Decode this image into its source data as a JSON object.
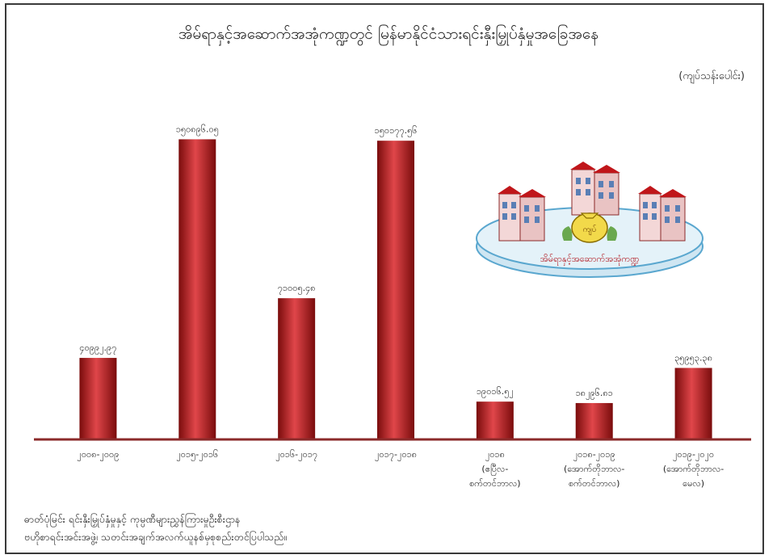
{
  "chart_data": {
    "type": "bar",
    "title": "အိမ်ရာနှင့်အဆောက်အအုံကဏ္ဍတွင် မြန်မာနိုင်ငံသားရင်းနှီးမြှုပ်နှံမှုအခြေအနေ",
    "unit": "(ကျပ်သန်းပေါင်း)",
    "ylim": [
      0,
      160000
    ],
    "categories": [
      [
        "၂၀၀၈-၂၀၀၉"
      ],
      [
        "၂၀၁၅-၂၀၁၆"
      ],
      [
        "၂၀၁၆-၂၀၁၇"
      ],
      [
        "၂၀၁၇-၂၀၁၈"
      ],
      [
        "၂၀၁၈",
        "(ဧပြီလ-",
        "စက်တင်ဘာလ)"
      ],
      [
        "၂၀၁၈-၂၀၁၉",
        "(အောက်တိုဘာလ-",
        "စက်တင်ဘာလ)"
      ],
      [
        "၂၀၁၉-၂၀၂၀",
        "(အောက်တိုဘာလ-",
        "မေလ)"
      ]
    ],
    "values": [
      40992.97,
      150896.05,
      71005.48,
      150177.56,
      19016.52,
      18296.81,
      35953.38
    ],
    "value_labels": [
      "၄၀၉၉၂.၉၇",
      "၁၅၀၈၉၆.၀၅",
      "၇၁၀၀၅.၄၈",
      "၁၅၀၁၇၇.၅၆",
      "၁၉၀၁၆.၅၂",
      "၁၈၂၉၆.၈၁",
      "၃၅၉၅၃.၃၈"
    ],
    "colors": {
      "bar_dark": "#7a0c0c",
      "bar_mid": "#c0161a",
      "bar_light": "#e0464a",
      "axis": "#8b2a2a"
    }
  },
  "illustration": {
    "label": "အိမ်ရာနှင့်အဆောက်အအုံကဏ္ဍ",
    "bag_label": "ကျပ်",
    "icon": "buildings-money-bag-icon"
  },
  "note": {
    "line1": "ဓာတ်ပုံမြင်း  ရင်းနှီးမြှုပ်နှံမှုနှင့် ကုမ္ပဏီများညွှန်ကြားမှုဦးစီးဌာန",
    "line2": "ဗဟိုစာရင်းအင်းအဖွဲ့၊ သတင်းအချက်အလက်ယူနစ်မှစုစည်းတင်ပြပါသည်။"
  }
}
